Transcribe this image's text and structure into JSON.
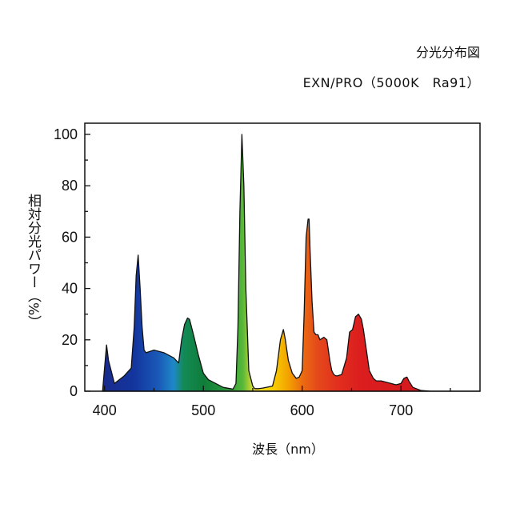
{
  "chart_data": {
    "type": "area",
    "title": "分光分布図",
    "subtitle": "EXN/PRO（5000K　Ra91）",
    "xlabel": "波長（nm）",
    "ylabel": "相対分光パワー（%）",
    "xlim": [
      380,
      780
    ],
    "ylim": [
      0,
      100
    ],
    "x_ticks": [
      400,
      500,
      600,
      700
    ],
    "y_ticks": [
      0,
      20,
      40,
      60,
      80,
      100
    ],
    "grid": false,
    "fill": "spectral-gradient",
    "series": [
      {
        "x": [
          398,
          402,
          404,
          410,
          420,
          427,
          430,
          432,
          434,
          436,
          438,
          440,
          442,
          450,
          460,
          470,
          475,
          478,
          481,
          484,
          486,
          490,
          495,
          500,
          505,
          520,
          530,
          533,
          535,
          537,
          539,
          541,
          543,
          546,
          550,
          552,
          554,
          556,
          560,
          570,
          574,
          578,
          581,
          583,
          586,
          590,
          594,
          597,
          600,
          602,
          604,
          606,
          607,
          608,
          610,
          612,
          614,
          616,
          618,
          620,
          622,
          625,
          628,
          630,
          632,
          634,
          636,
          640,
          645,
          648,
          651,
          654,
          657,
          660,
          662,
          665,
          668,
          672,
          675,
          680,
          685,
          690,
          695,
          700,
          703,
          706,
          708,
          712,
          720,
          730,
          740,
          760,
          780
        ],
        "y": [
          0,
          18,
          12,
          3,
          6,
          9,
          25,
          45,
          53,
          40,
          25,
          16,
          15,
          16,
          15,
          13,
          11,
          20,
          26,
          28.5,
          28,
          22,
          14,
          7,
          4.5,
          1.5,
          0.8,
          3,
          25,
          70,
          100,
          80,
          40,
          8,
          2,
          1,
          1,
          1,
          1.2,
          2,
          8,
          20,
          24,
          20,
          12,
          7,
          5,
          5.5,
          8,
          30,
          60,
          67,
          67,
          55,
          35,
          23,
          22,
          22,
          20,
          20.5,
          21,
          20,
          12,
          8,
          6.5,
          6,
          6,
          6.5,
          13,
          23,
          24,
          29,
          30,
          28,
          24,
          16,
          8,
          5,
          4,
          4,
          3.5,
          3,
          2.5,
          3,
          5,
          5.5,
          4,
          1.5,
          0.3,
          0,
          0,
          0,
          0
        ]
      }
    ]
  }
}
